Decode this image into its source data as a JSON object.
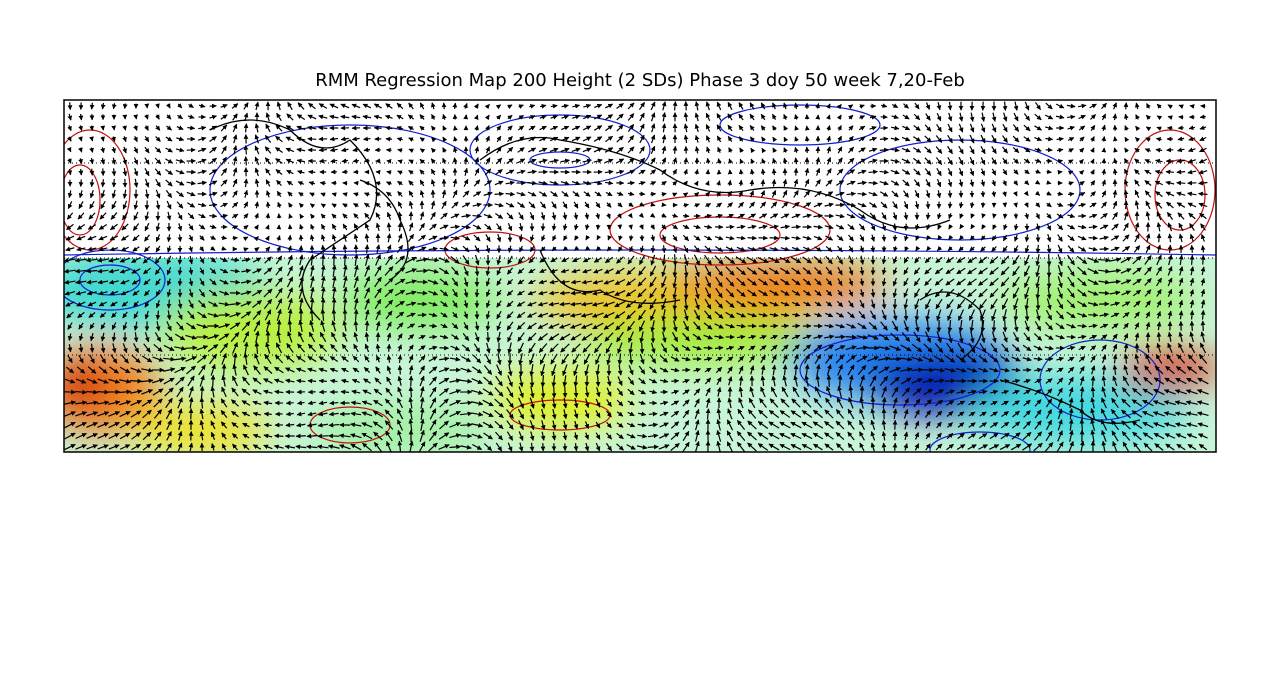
{
  "title": "RMM Regression Map 200 Height (2 SDs) Phase 3 doy 50 week 7,20-Feb"
}
